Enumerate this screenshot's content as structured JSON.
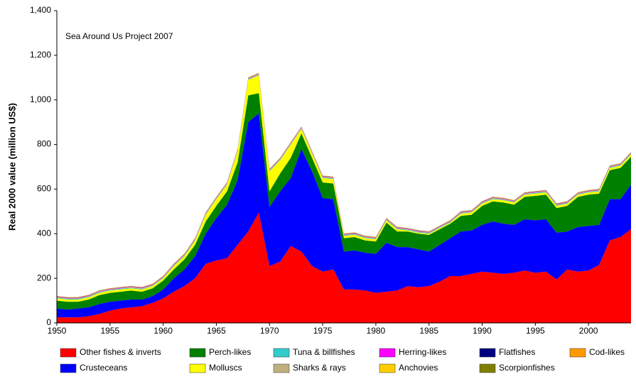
{
  "chart_data": {
    "type": "stacked-area",
    "annotation": "Sea Around Us Project 2007",
    "y_label": "Real 2000 value (million US$)",
    "x": [
      1950,
      1951,
      1952,
      1953,
      1954,
      1955,
      1956,
      1957,
      1958,
      1959,
      1960,
      1961,
      1962,
      1963,
      1964,
      1965,
      1966,
      1967,
      1968,
      1969,
      1970,
      1971,
      1972,
      1973,
      1974,
      1975,
      1976,
      1977,
      1978,
      1979,
      1980,
      1981,
      1982,
      1983,
      1984,
      1985,
      1986,
      1987,
      1988,
      1989,
      1990,
      1991,
      1992,
      1993,
      1994,
      1995,
      1996,
      1997,
      1998,
      1999,
      2000,
      2001,
      2002,
      2003,
      2004
    ],
    "xlim": [
      1950,
      2004
    ],
    "xticks": [
      1950,
      1955,
      1960,
      1965,
      1970,
      1975,
      1980,
      1985,
      1990,
      1995,
      2000
    ],
    "ylim": [
      0,
      1400
    ],
    "yticks": [
      0,
      200,
      400,
      600,
      800,
      {
        "value": 1000,
        "label": "1,000"
      },
      {
        "value": 1200,
        "label": "1,200"
      },
      {
        "value": 1400,
        "label": "1,400"
      }
    ],
    "series": [
      {
        "name": "Other fishes & inverts",
        "color": "#ff0000",
        "values": [
          25,
          25,
          25,
          30,
          40,
          55,
          65,
          70,
          75,
          90,
          110,
          140,
          165,
          200,
          265,
          280,
          290,
          350,
          410,
          495,
          255,
          275,
          345,
          320,
          255,
          230,
          240,
          150,
          150,
          145,
          135,
          140,
          145,
          165,
          160,
          165,
          185,
          210,
          210,
          220,
          230,
          225,
          220,
          225,
          235,
          225,
          230,
          195,
          240,
          230,
          235,
          260,
          370,
          385,
          420
        ]
      },
      {
        "name": "Crusteceans",
        "color": "#0000ff",
        "values": [
          40,
          35,
          40,
          40,
          45,
          40,
          35,
          35,
          30,
          30,
          40,
          60,
          75,
          100,
          135,
          190,
          240,
          290,
          490,
          445,
          265,
          315,
          305,
          460,
          425,
          330,
          315,
          170,
          175,
          170,
          175,
          220,
          195,
          175,
          170,
          155,
          165,
          170,
          200,
          195,
          210,
          230,
          225,
          215,
          230,
          235,
          235,
          210,
          170,
          200,
          200,
          180,
          185,
          170,
          200
        ]
      },
      {
        "name": "Perch-likes",
        "color": "#008000",
        "values": [
          35,
          35,
          30,
          35,
          40,
          40,
          40,
          40,
          35,
          35,
          40,
          40,
          45,
          50,
          55,
          55,
          60,
          80,
          120,
          90,
          70,
          80,
          90,
          70,
          60,
          70,
          70,
          60,
          60,
          55,
          55,
          90,
          70,
          70,
          70,
          75,
          70,
          65,
          70,
          70,
          85,
          90,
          95,
          90,
          100,
          110,
          110,
          110,
          115,
          135,
          140,
          140,
          130,
          140,
          125
        ]
      },
      {
        "name": "Molluscs",
        "color": "#ffff00",
        "values": [
          10,
          10,
          10,
          10,
          10,
          10,
          10,
          10,
          10,
          10,
          10,
          15,
          15,
          20,
          30,
          30,
          30,
          50,
          70,
          80,
          90,
          60,
          60,
          20,
          20,
          20,
          20,
          10,
          10,
          10,
          10,
          10,
          10,
          5,
          5,
          5,
          5,
          5,
          10,
          10,
          10,
          10,
          10,
          10,
          10,
          10,
          10,
          10,
          10,
          10,
          10,
          10,
          10,
          10,
          10
        ]
      },
      {
        "name": "Tuna & billfishes",
        "color": "#33cccc",
        "values": [
          3,
          3,
          3,
          3,
          3,
          3,
          3,
          3,
          3,
          3,
          3,
          3,
          3,
          3,
          3,
          3,
          3,
          3,
          3,
          3,
          3,
          3,
          3,
          3,
          3,
          3,
          3,
          3,
          3,
          3,
          3,
          3,
          3,
          3,
          3,
          3,
          3,
          3,
          3,
          3,
          3,
          3,
          3,
          3,
          3,
          3,
          3,
          3,
          3,
          3,
          3,
          3,
          3,
          3,
          3
        ]
      },
      {
        "name": "Sharks & rays",
        "color": "#c0b080",
        "values": [
          2,
          2,
          2,
          2,
          2,
          2,
          2,
          2,
          2,
          2,
          2,
          2,
          2,
          2,
          2,
          2,
          2,
          2,
          2,
          2,
          2,
          2,
          2,
          2,
          2,
          2,
          2,
          2,
          2,
          2,
          2,
          2,
          2,
          2,
          2,
          2,
          2,
          2,
          2,
          2,
          2,
          2,
          2,
          2,
          2,
          2,
          2,
          2,
          2,
          2,
          2,
          2,
          2,
          2,
          2
        ]
      },
      {
        "name": "Herring-likes",
        "color": "#ff00ff",
        "values": [
          2,
          2,
          2,
          2,
          2,
          2,
          2,
          2,
          2,
          2,
          2,
          2,
          2,
          2,
          2,
          2,
          2,
          2,
          2,
          2,
          2,
          2,
          2,
          2,
          2,
          2,
          2,
          2,
          2,
          2,
          2,
          2,
          2,
          2,
          2,
          2,
          2,
          2,
          2,
          2,
          2,
          2,
          2,
          2,
          2,
          2,
          2,
          2,
          2,
          2,
          2,
          2,
          2,
          2,
          2
        ]
      },
      {
        "name": "Anchovies",
        "color": "#ffcc00",
        "values": [
          1,
          1,
          1,
          1,
          1,
          1,
          1,
          1,
          1,
          1,
          1,
          1,
          1,
          1,
          1,
          1,
          1,
          1,
          1,
          1,
          1,
          1,
          1,
          1,
          1,
          1,
          1,
          1,
          1,
          1,
          1,
          1,
          1,
          1,
          1,
          1,
          1,
          1,
          1,
          1,
          1,
          1,
          1,
          1,
          1,
          1,
          1,
          1,
          1,
          1,
          1,
          1,
          1,
          1,
          1
        ]
      },
      {
        "name": "Flatfishes",
        "color": "#000080",
        "values": [
          1,
          1,
          1,
          1,
          1,
          1,
          1,
          1,
          1,
          1,
          1,
          1,
          1,
          1,
          1,
          1,
          1,
          1,
          1,
          1,
          1,
          1,
          1,
          1,
          1,
          1,
          1,
          1,
          1,
          1,
          1,
          1,
          1,
          1,
          1,
          1,
          1,
          1,
          1,
          1,
          1,
          1,
          1,
          1,
          1,
          1,
          1,
          1,
          1,
          1,
          1,
          1,
          1,
          1,
          1
        ]
      },
      {
        "name": "Scorpionfishes",
        "color": "#808000",
        "values": [
          1,
          1,
          1,
          1,
          1,
          1,
          1,
          1,
          1,
          1,
          1,
          1,
          1,
          1,
          1,
          1,
          1,
          1,
          1,
          1,
          1,
          1,
          1,
          1,
          1,
          1,
          1,
          1,
          1,
          1,
          1,
          1,
          1,
          1,
          1,
          1,
          1,
          1,
          1,
          1,
          1,
          1,
          1,
          1,
          1,
          1,
          1,
          1,
          1,
          1,
          1,
          1,
          1,
          1,
          1
        ]
      },
      {
        "name": "Cod-likes",
        "color": "#ff9900",
        "values": [
          1,
          1,
          1,
          1,
          1,
          1,
          1,
          1,
          1,
          1,
          1,
          1,
          1,
          1,
          1,
          1,
          1,
          1,
          1,
          1,
          1,
          1,
          1,
          1,
          1,
          1,
          1,
          1,
          1,
          1,
          1,
          1,
          1,
          1,
          1,
          1,
          1,
          1,
          1,
          1,
          1,
          1,
          1,
          1,
          1,
          1,
          1,
          1,
          1,
          1,
          1,
          1,
          1,
          1,
          1
        ]
      }
    ]
  }
}
